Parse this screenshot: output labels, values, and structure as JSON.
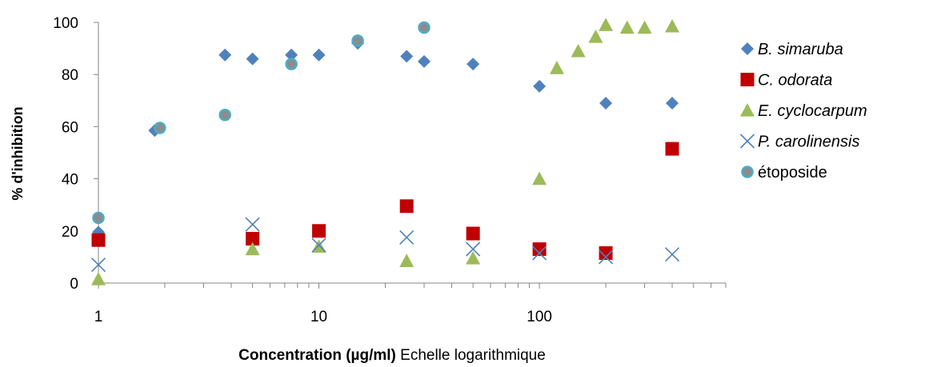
{
  "chart_data": {
    "type": "scatter",
    "title": "",
    "xlabel_bold": "Concentration (µg/ml)",
    "xlabel_rest": " Echelle logarithmique",
    "ylabel": "% d'inhibition",
    "xscale": "log",
    "xlim": [
      1,
      700
    ],
    "ylim": [
      0,
      100
    ],
    "x_ticks": [
      1,
      10,
      100
    ],
    "x_tick_labels": [
      "1",
      "10",
      "100"
    ],
    "y_ticks": [
      0,
      20,
      40,
      60,
      80,
      100
    ],
    "y_tick_labels": [
      "0",
      "20",
      "40",
      "60",
      "80",
      "100"
    ],
    "grid": false,
    "legend_position": "right",
    "series": [
      {
        "name": "B. simaruba",
        "italic": true,
        "marker": "diamond",
        "color": "#4f81bd",
        "x": [
          1,
          1.8,
          3.75,
          5,
          7.5,
          10,
          15,
          25,
          30,
          50,
          100,
          200,
          400
        ],
        "y": [
          19.5,
          58.5,
          87.5,
          86,
          87.5,
          87.5,
          92,
          87,
          85,
          84,
          75.5,
          69,
          69
        ]
      },
      {
        "name": "C. odorata",
        "italic": true,
        "marker": "square",
        "color": "#c00000",
        "x": [
          1,
          5,
          10,
          25,
          50,
          100,
          200,
          400
        ],
        "y": [
          16.5,
          17,
          20,
          29.5,
          19,
          13,
          11.5,
          51.5
        ]
      },
      {
        "name": "E. cyclocarpum",
        "italic": true,
        "marker": "triangle",
        "color": "#9bbb59",
        "x": [
          1,
          5,
          10,
          25,
          50,
          100,
          120,
          150,
          180,
          200,
          250,
          300,
          400
        ],
        "y": [
          1.5,
          13,
          14,
          8.5,
          9.5,
          40,
          82.5,
          89,
          94.5,
          99,
          98,
          98,
          98.5
        ]
      },
      {
        "name": "P. carolinensis",
        "italic": true,
        "marker": "x",
        "color": "#4f81bd",
        "x": [
          1,
          5,
          10,
          25,
          50,
          100,
          200,
          400
        ],
        "y": [
          7,
          22.5,
          14.5,
          17.5,
          13,
          11.5,
          10,
          11
        ]
      },
      {
        "name": "étoposide",
        "italic": false,
        "marker": "circle",
        "color": "#4bacc6",
        "x": [
          1,
          1.9,
          3.75,
          7.5,
          15,
          30
        ],
        "y": [
          25,
          59.5,
          64.5,
          84,
          93,
          98
        ]
      }
    ]
  }
}
